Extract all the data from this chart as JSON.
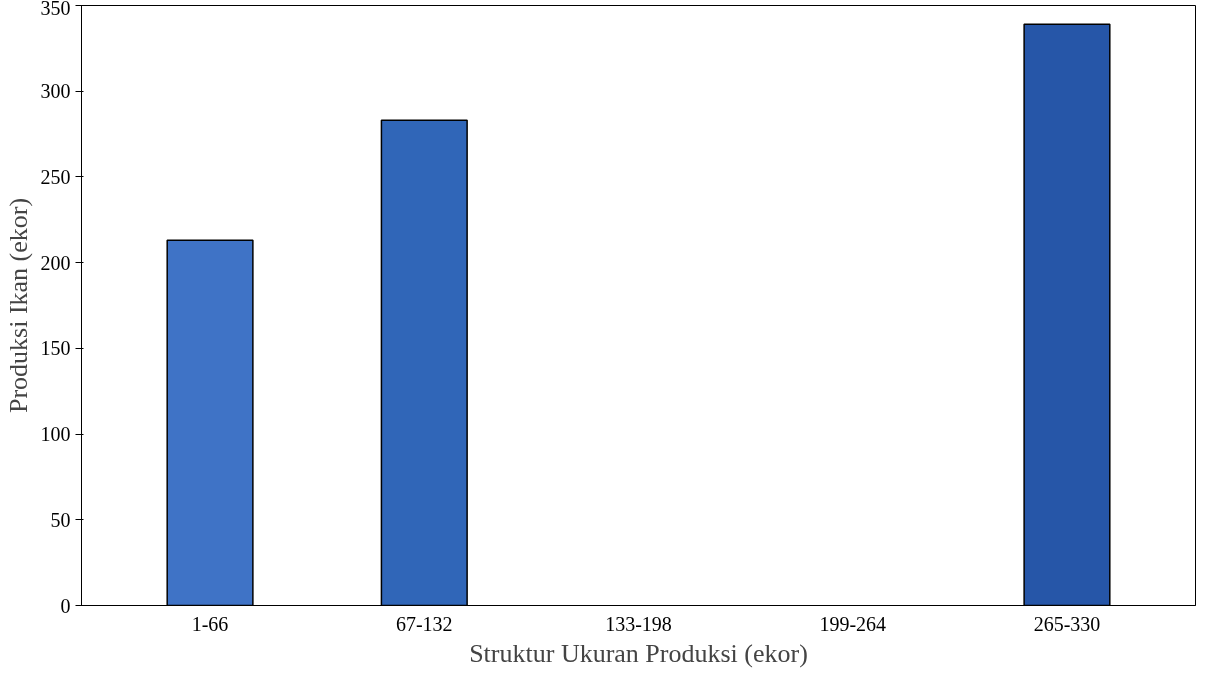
{
  "chart_data": {
    "type": "bar",
    "xlabel": "Struktur Ukuran Produksi (ekor)",
    "ylabel": "Produksi Ikan (ekor)",
    "categories": [
      "1-66",
      "67-132",
      "133-198",
      "199-264",
      "265-330"
    ],
    "values": [
      213,
      283,
      null,
      null,
      339
    ],
    "colors": [
      "#3f73c6",
      "#3066b8",
      null,
      null,
      "#2656a8"
    ],
    "ylim": [
      0,
      350
    ],
    "yticks": [
      0,
      50,
      100,
      150,
      200,
      250,
      300,
      350
    ],
    "grid": false
  }
}
